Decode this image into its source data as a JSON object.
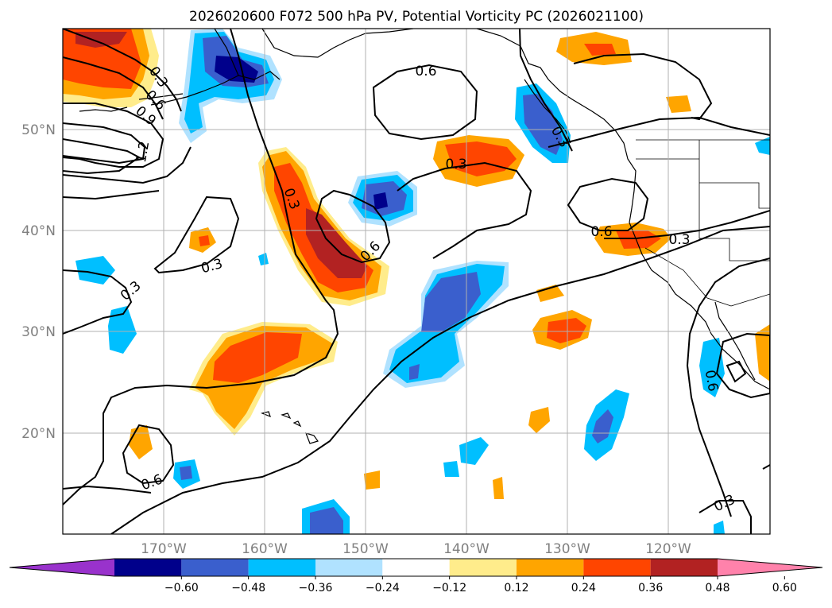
{
  "title": "2026020600 F072 500 hPa PV, Potential Vorticity PC (2026021100)",
  "map": {
    "lon_labels": [
      "170°W",
      "160°W",
      "150°W",
      "140°W",
      "130°W",
      "120°W"
    ],
    "lat_labels": [
      "50°N",
      "40°N",
      "30°N",
      "20°N"
    ],
    "extent": {
      "lon_min": -180,
      "lon_max": -110,
      "lat_min": 10,
      "lat_max": 60
    }
  },
  "colorbar": {
    "ticks": [
      "−0.60",
      "−0.48",
      "−0.36",
      "−0.24",
      "−0.12",
      "0.12",
      "0.24",
      "0.36",
      "0.48",
      "0.60"
    ],
    "colors": [
      "#9932cc",
      "#00008b",
      "#3a5fcd",
      "#00bfff",
      "#b0e2ff",
      "#ffffff",
      "#ffec8b",
      "#ffa500",
      "#ff4500",
      "#b22222",
      "#ff82ab"
    ]
  },
  "contour_labels": [
    {
      "text": "0.6"
    },
    {
      "text": "0.3"
    },
    {
      "text": "0.3"
    },
    {
      "text": "0.6"
    },
    {
      "text": "0.9"
    },
    {
      "text": "1.2"
    },
    {
      "text": "0.3"
    },
    {
      "text": "0.6"
    },
    {
      "text": "0.3"
    },
    {
      "text": "0.3"
    },
    {
      "text": "0.6"
    },
    {
      "text": "0.3"
    },
    {
      "text": "0.3"
    },
    {
      "text": "0.6"
    },
    {
      "text": "0.3"
    },
    {
      "text": "0.6"
    }
  ]
}
